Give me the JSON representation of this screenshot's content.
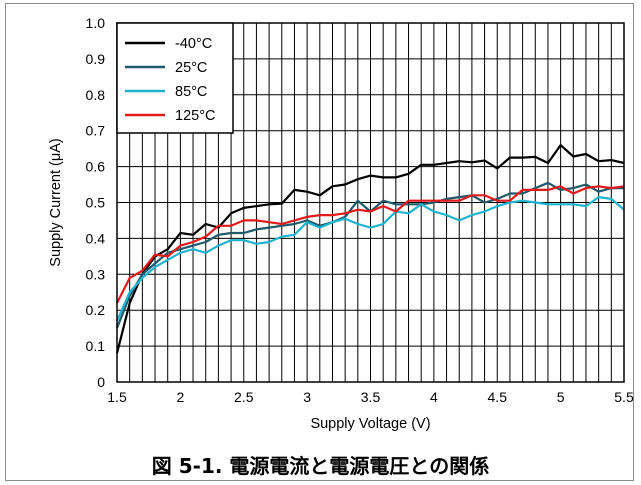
{
  "figure": {
    "caption": "図 5-1. 電源電流と電源電圧との関係"
  },
  "chart_data": {
    "type": "line",
    "xlabel": "Supply Voltage (V)",
    "ylabel": "Supply Current (μA)",
    "xlim": [
      1.5,
      5.5
    ],
    "ylim": [
      0,
      1.0
    ],
    "x_ticks": [
      "1.5",
      "2",
      "2.5",
      "3",
      "3.5",
      "4",
      "4.5",
      "5",
      "5.5"
    ],
    "y_ticks": [
      "0",
      "0.1",
      "0.2",
      "0.3",
      "0.4",
      "0.5",
      "0.6",
      "0.7",
      "0.8",
      "0.9",
      "1.0"
    ],
    "grid": true,
    "legend_position": "top-left",
    "series": [
      {
        "name": "-40°C",
        "color": "#000000",
        "x": [
          1.5,
          1.6,
          1.7,
          1.8,
          1.9,
          2.0,
          2.1,
          2.2,
          2.3,
          2.4,
          2.5,
          2.6,
          2.7,
          2.8,
          2.9,
          3.0,
          3.1,
          3.2,
          3.3,
          3.4,
          3.5,
          3.6,
          3.7,
          3.8,
          3.9,
          4.0,
          4.1,
          4.2,
          4.3,
          4.4,
          4.5,
          4.6,
          4.7,
          4.8,
          4.9,
          5.0,
          5.1,
          5.2,
          5.3,
          5.4,
          5.5
        ],
        "y": [
          0.08,
          0.22,
          0.3,
          0.35,
          0.37,
          0.415,
          0.41,
          0.44,
          0.43,
          0.47,
          0.485,
          0.49,
          0.495,
          0.497,
          0.535,
          0.53,
          0.52,
          0.545,
          0.55,
          0.565,
          0.575,
          0.57,
          0.57,
          0.58,
          0.605,
          0.605,
          0.61,
          0.615,
          0.612,
          0.617,
          0.595,
          0.625,
          0.625,
          0.627,
          0.61,
          0.66,
          0.628,
          0.635,
          0.615,
          0.618,
          0.61
        ]
      },
      {
        "name": "25°C",
        "color": "#1f5a6b",
        "x": [
          1.5,
          1.6,
          1.7,
          1.8,
          1.9,
          2.0,
          2.1,
          2.2,
          2.3,
          2.4,
          2.5,
          2.6,
          2.7,
          2.8,
          2.9,
          3.0,
          3.1,
          3.2,
          3.3,
          3.4,
          3.5,
          3.6,
          3.7,
          3.8,
          3.9,
          4.0,
          4.1,
          4.2,
          4.3,
          4.4,
          4.5,
          4.6,
          4.7,
          4.8,
          4.9,
          5.0,
          5.1,
          5.2,
          5.3,
          5.4,
          5.5
        ],
        "y": [
          0.15,
          0.24,
          0.3,
          0.33,
          0.36,
          0.37,
          0.38,
          0.39,
          0.41,
          0.415,
          0.415,
          0.425,
          0.43,
          0.435,
          0.44,
          0.45,
          0.435,
          0.445,
          0.46,
          0.505,
          0.475,
          0.505,
          0.495,
          0.495,
          0.495,
          0.5,
          0.51,
          0.515,
          0.52,
          0.5,
          0.51,
          0.525,
          0.525,
          0.54,
          0.555,
          0.535,
          0.54,
          0.55,
          0.53,
          0.54,
          0.54
        ]
      },
      {
        "name": "85°C",
        "color": "#1fb4cf",
        "x": [
          1.5,
          1.6,
          1.7,
          1.8,
          1.9,
          2.0,
          2.1,
          2.2,
          2.3,
          2.4,
          2.5,
          2.6,
          2.7,
          2.8,
          2.9,
          3.0,
          3.1,
          3.2,
          3.3,
          3.4,
          3.5,
          3.6,
          3.7,
          3.8,
          3.9,
          4.0,
          4.1,
          4.2,
          4.3,
          4.4,
          4.5,
          4.6,
          4.7,
          4.8,
          4.9,
          5.0,
          5.1,
          5.2,
          5.3,
          5.4,
          5.5
        ],
        "y": [
          0.17,
          0.25,
          0.29,
          0.32,
          0.34,
          0.36,
          0.37,
          0.36,
          0.38,
          0.395,
          0.395,
          0.385,
          0.39,
          0.405,
          0.41,
          0.445,
          0.43,
          0.445,
          0.455,
          0.44,
          0.43,
          0.44,
          0.475,
          0.47,
          0.495,
          0.475,
          0.465,
          0.45,
          0.465,
          0.475,
          0.49,
          0.5,
          0.505,
          0.5,
          0.495,
          0.495,
          0.495,
          0.49,
          0.515,
          0.51,
          0.48
        ]
      },
      {
        "name": "125°C",
        "color": "#e31a1c",
        "x": [
          1.5,
          1.6,
          1.7,
          1.8,
          1.9,
          2.0,
          2.1,
          2.2,
          2.3,
          2.4,
          2.5,
          2.6,
          2.7,
          2.8,
          2.9,
          3.0,
          3.1,
          3.2,
          3.3,
          3.4,
          3.5,
          3.6,
          3.7,
          3.8,
          3.9,
          4.0,
          4.1,
          4.2,
          4.3,
          4.4,
          4.5,
          4.6,
          4.7,
          4.8,
          4.9,
          5.0,
          5.1,
          5.2,
          5.3,
          5.4,
          5.5
        ],
        "y": [
          0.22,
          0.29,
          0.31,
          0.355,
          0.35,
          0.38,
          0.39,
          0.405,
          0.435,
          0.435,
          0.45,
          0.45,
          0.445,
          0.44,
          0.45,
          0.46,
          0.465,
          0.465,
          0.47,
          0.48,
          0.475,
          0.49,
          0.475,
          0.505,
          0.505,
          0.505,
          0.505,
          0.505,
          0.52,
          0.52,
          0.505,
          0.505,
          0.535,
          0.535,
          0.535,
          0.545,
          0.525,
          0.54,
          0.545,
          0.54,
          0.545
        ]
      }
    ]
  }
}
